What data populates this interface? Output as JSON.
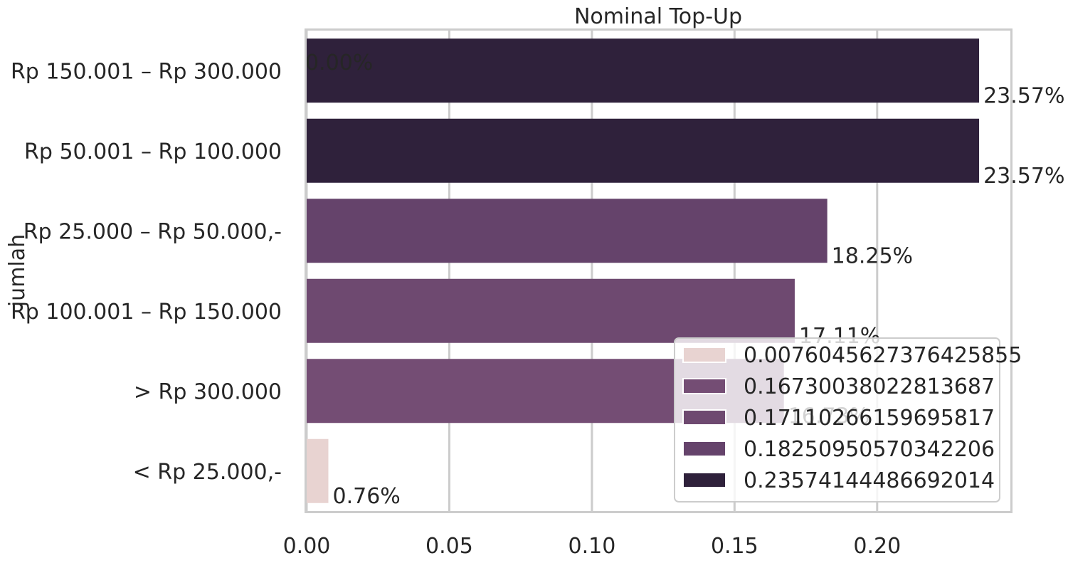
{
  "chart_data": {
    "type": "bar",
    "orientation": "horizontal",
    "title": "Nominal Top-Up",
    "xlabel": "",
    "ylabel": "jumlah",
    "xlim": [
      0,
      0.2467
    ],
    "xticks": [
      "0.00",
      "0.05",
      "0.10",
      "0.15",
      "0.20"
    ],
    "xtick_values": [
      0,
      0.05,
      0.1,
      0.15,
      0.2
    ],
    "grid": true,
    "categories": [
      "Rp 150.001 – Rp 300.000",
      "Rp 50.001 – Rp 100.000",
      "Rp 25.000 – Rp 50.000,-",
      "Rp 100.001 – Rp 150.000",
      "> Rp 300.000",
      "< Rp 25.000,-"
    ],
    "values": [
      0.23574144486692014,
      0.23574144486692014,
      0.18250950570342206,
      0.17110266159695817,
      0.16730038022813687,
      0.0076045627376425855
    ],
    "bar_colors": [
      "#2f213b",
      "#2f213b",
      "#65436b",
      "#6e4970",
      "#744d74",
      "#e8d3d1"
    ],
    "data_labels": [
      "23.57%",
      "23.57%",
      "18.25%",
      "17.11%",
      "16.73%",
      "0.76%"
    ],
    "extra_annotations": [
      "0.00%"
    ],
    "legend": {
      "position": "lower-right",
      "entries": [
        {
          "label": "0.0076045627376425855",
          "color": "#e8d3d1"
        },
        {
          "label": "0.16730038022813687",
          "color": "#744d74"
        },
        {
          "label": "0.17110266159695817",
          "color": "#6e4970"
        },
        {
          "label": "0.18250950570342206",
          "color": "#65436b"
        },
        {
          "label": "0.23574144486692014",
          "color": "#2f213b"
        }
      ]
    }
  }
}
